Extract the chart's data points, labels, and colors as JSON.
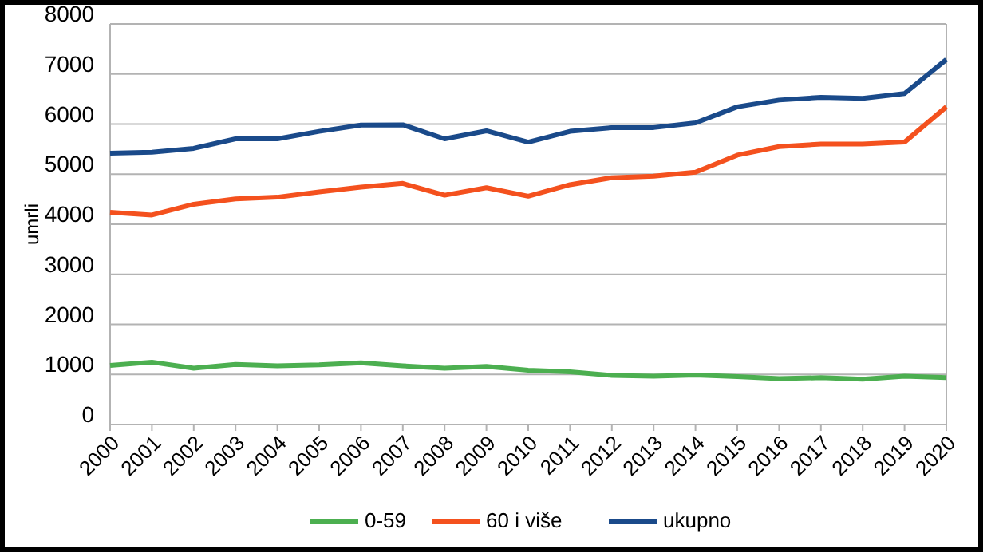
{
  "chart_data": {
    "type": "line",
    "ylabel": "umrli",
    "categories": [
      "2000",
      "2001",
      "2002",
      "2003",
      "2004",
      "2005",
      "2006",
      "2007",
      "2008",
      "2009",
      "2010",
      "2011",
      "2012",
      "2013",
      "2014",
      "2015",
      "2016",
      "2017",
      "2018",
      "2019",
      "2020"
    ],
    "series": [
      {
        "name": "0-59",
        "color": "#4caf50",
        "values": [
          1180,
          1245,
          1125,
          1200,
          1170,
          1190,
          1230,
          1170,
          1125,
          1160,
          1085,
          1050,
          980,
          965,
          990,
          955,
          915,
          935,
          905,
          965,
          935
        ]
      },
      {
        "name": "60 i više",
        "color": "#f4511e",
        "values": [
          4240,
          4185,
          4400,
          4505,
          4540,
          4645,
          4740,
          4815,
          4580,
          4730,
          4560,
          4790,
          4930,
          4960,
          5040,
          5380,
          5550,
          5600,
          5600,
          5640,
          6345
        ]
      },
      {
        "name": "ukupno",
        "color": "#1a4a8a",
        "values": [
          5420,
          5440,
          5515,
          5705,
          5705,
          5855,
          5980,
          5985,
          5705,
          5865,
          5640,
          5855,
          5930,
          5930,
          6025,
          6345,
          6480,
          6535,
          6515,
          6610,
          7290
        ]
      }
    ],
    "ylim": [
      0,
      8000
    ],
    "yticks": [
      0,
      1000,
      2000,
      3000,
      4000,
      5000,
      6000,
      7000,
      8000
    ],
    "grid": "y",
    "legend": "bottom",
    "marker": "none",
    "line_style": "solid"
  }
}
